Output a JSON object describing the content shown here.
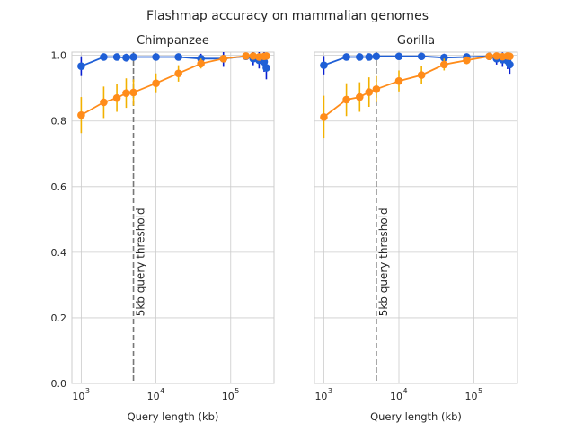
{
  "figure": {
    "suptitle": "Flashmap accuracy on mammalian genomes"
  },
  "colors": {
    "series_blue": "#1f5fd6",
    "series_blue_err": "#0a1fd1",
    "series_orange": "#ff8c1a",
    "series_orange_err": "#f2b100",
    "grid": "#cccccc",
    "threshold": "#777777",
    "background": "#ffffff"
  },
  "chart_data": [
    {
      "type": "line",
      "title": "Chimpanzee",
      "xlabel": "Query length (kb)",
      "ylabel": "",
      "xscale": "log",
      "xlim": [
        750,
        380000
      ],
      "ylim": [
        0.0,
        1.01
      ],
      "xticks": [
        {
          "value": 1000,
          "label": "10",
          "exp": "3"
        },
        {
          "value": 10000,
          "label": "10",
          "exp": "4"
        },
        {
          "value": 100000,
          "label": "10",
          "exp": "5"
        }
      ],
      "yticks": [
        {
          "value": 0.0,
          "label": "0.0"
        },
        {
          "value": 0.2,
          "label": "0.2"
        },
        {
          "value": 0.4,
          "label": "0.4"
        },
        {
          "value": 0.6,
          "label": "0.6"
        },
        {
          "value": 0.8,
          "label": "0.8"
        },
        {
          "value": 1.0,
          "label": "1.0"
        }
      ],
      "grid": true,
      "threshold": {
        "x": 5000,
        "label": "5kb query threshold"
      },
      "series": [
        {
          "color": "blue",
          "x": [
            1000,
            2000,
            3000,
            4000,
            5000,
            10000,
            20000,
            40000,
            80000,
            160000,
            200000,
            240000,
            280000,
            300000
          ],
          "y": [
            0.967,
            0.995,
            0.995,
            0.993,
            0.995,
            0.995,
            0.995,
            0.99,
            0.99,
            0.997,
            0.99,
            0.985,
            0.98,
            0.962
          ],
          "err": [
            0.03,
            0.008,
            0.008,
            0.012,
            0.008,
            0.006,
            0.006,
            0.015,
            0.025,
            0.01,
            0.02,
            0.025,
            0.03,
            0.035
          ]
        },
        {
          "color": "orange",
          "x": [
            1000,
            2000,
            3000,
            4000,
            5000,
            10000,
            20000,
            40000,
            80000,
            160000,
            200000,
            240000,
            280000,
            300000
          ],
          "y": [
            0.818,
            0.857,
            0.87,
            0.885,
            0.887,
            0.915,
            0.945,
            0.975,
            0.99,
            0.998,
            0.998,
            0.995,
            0.997,
            0.998
          ],
          "err": [
            0.055,
            0.048,
            0.042,
            0.045,
            0.04,
            0.03,
            0.025,
            0.015,
            0.008,
            0.004,
            0.004,
            0.005,
            0.004,
            0.003
          ]
        }
      ]
    },
    {
      "type": "line",
      "title": "Gorilla",
      "xlabel": "Query length (kb)",
      "ylabel": "",
      "xscale": "log",
      "xlim": [
        750,
        380000
      ],
      "ylim": [
        0.0,
        1.01
      ],
      "xticks": [
        {
          "value": 1000,
          "label": "10",
          "exp": "3"
        },
        {
          "value": 10000,
          "label": "10",
          "exp": "4"
        },
        {
          "value": 100000,
          "label": "10",
          "exp": "5"
        }
      ],
      "yticks": [],
      "grid": true,
      "threshold": {
        "x": 5000,
        "label": "5kb query threshold"
      },
      "series": [
        {
          "color": "blue",
          "x": [
            1000,
            2000,
            3000,
            4000,
            5000,
            10000,
            20000,
            40000,
            80000,
            160000,
            200000,
            240000,
            280000,
            300000
          ],
          "y": [
            0.97,
            0.995,
            0.995,
            0.995,
            0.997,
            0.997,
            0.997,
            0.993,
            0.995,
            0.997,
            0.99,
            0.987,
            0.983,
            0.972
          ],
          "err": [
            0.028,
            0.008,
            0.008,
            0.01,
            0.006,
            0.005,
            0.005,
            0.012,
            0.01,
            0.01,
            0.018,
            0.022,
            0.025,
            0.028
          ]
        },
        {
          "color": "orange",
          "x": [
            1000,
            2000,
            3000,
            4000,
            5000,
            10000,
            20000,
            40000,
            80000,
            160000,
            200000,
            240000,
            280000,
            300000
          ],
          "y": [
            0.812,
            0.865,
            0.873,
            0.888,
            0.897,
            0.922,
            0.94,
            0.972,
            0.985,
            0.997,
            0.998,
            0.996,
            0.998,
            0.997
          ],
          "err": [
            0.065,
            0.05,
            0.045,
            0.045,
            0.04,
            0.032,
            0.028,
            0.018,
            0.012,
            0.004,
            0.003,
            0.004,
            0.003,
            0.003
          ]
        }
      ]
    }
  ]
}
